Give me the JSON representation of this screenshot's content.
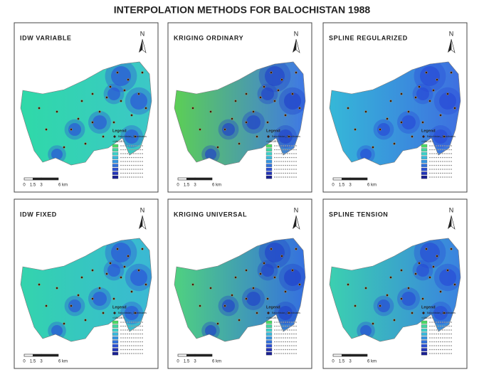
{
  "title": "INTERPOLATION METHODS FOR BALOCHISTAN 1988",
  "panels": [
    {
      "title": "IDW VARIABLE",
      "north": "N",
      "legend": {
        "title": "Legend",
        "points": "Balochistan_Coordinates",
        "field": "<VALUE>"
      },
      "scale": [
        "0",
        "1.5",
        "3",
        "6 km"
      ]
    },
    {
      "title": "KRIGING ORDINARY",
      "north": "N",
      "legend": {
        "title": "Legend",
        "points": "Balochistan_Coordinates",
        "field": "<VALUE>"
      },
      "scale": [
        "0",
        "1.5",
        "3",
        "6 km"
      ]
    },
    {
      "title": "SPLINE REGULARIZED",
      "north": "N",
      "legend": {
        "title": "Legend",
        "points": "Balochistan_Coordinates",
        "field": "<VALUE>"
      },
      "scale": [
        "0",
        "1.5",
        "3",
        "6 km"
      ]
    },
    {
      "title": "IDW FIXED",
      "north": "N",
      "legend": {
        "title": "Legend",
        "points": "Balochistan_Coordinates",
        "field": "<VALUE>"
      },
      "scale": [
        "0",
        "1.5",
        "3",
        "6 km"
      ]
    },
    {
      "title": "KRIGING UNIVERSAL",
      "north": "N",
      "legend": {
        "title": "Legend",
        "points": "Balochistan_Coordinates",
        "field": "<VALUE>"
      },
      "scale": [
        "0",
        "1.5",
        "3",
        "6 km"
      ]
    },
    {
      "title": "SPLINE TENSION",
      "north": "N",
      "legend": {
        "title": "Legend",
        "points": "Balochistan_Coordinates",
        "field": "<VALUE>"
      },
      "scale": [
        "0",
        "1.5",
        "3",
        "6 km"
      ]
    }
  ]
}
